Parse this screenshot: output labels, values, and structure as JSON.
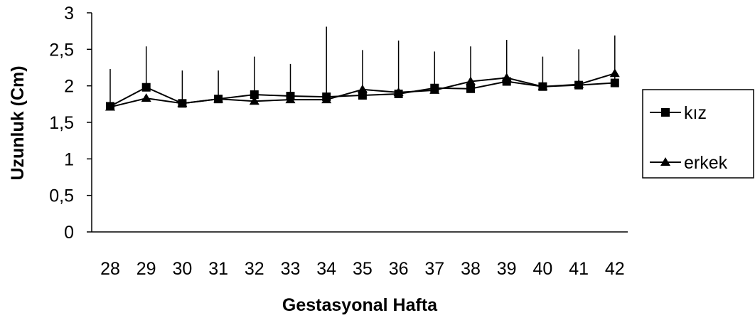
{
  "chart_data": {
    "type": "line",
    "x": [
      "28",
      "29",
      "30",
      "31",
      "32",
      "33",
      "34",
      "35",
      "36",
      "37",
      "38",
      "39",
      "40",
      "41",
      "42"
    ],
    "xlabel": "Gestasyonal Hafta",
    "ylabel": "Uzunluk (Cm)",
    "ylim": [
      0,
      3
    ],
    "yticks": [
      "0",
      "0,5",
      "1",
      "1,5",
      "2",
      "2,5",
      "3"
    ],
    "grid": false,
    "legend_position": "right",
    "series": [
      {
        "name": "kız",
        "marker": "square",
        "color": "#000000",
        "values": [
          1.72,
          1.98,
          1.76,
          1.82,
          1.88,
          1.86,
          1.85,
          1.87,
          1.89,
          1.97,
          1.96,
          2.06,
          1.99,
          2.01,
          2.04
        ],
        "error_upper": [
          2.23,
          2.54,
          2.21,
          2.21,
          2.4,
          2.3,
          2.81,
          2.49,
          2.62,
          2.47,
          2.54,
          2.63,
          2.4,
          2.5,
          2.69
        ]
      },
      {
        "name": "erkek",
        "marker": "triangle",
        "color": "#000000",
        "values": [
          1.71,
          1.83,
          1.76,
          1.82,
          1.79,
          1.81,
          1.81,
          1.95,
          1.91,
          1.94,
          2.06,
          2.11,
          1.99,
          2.02,
          2.17
        ]
      }
    ]
  },
  "legend": {
    "items": [
      "kız",
      "erkek"
    ]
  }
}
